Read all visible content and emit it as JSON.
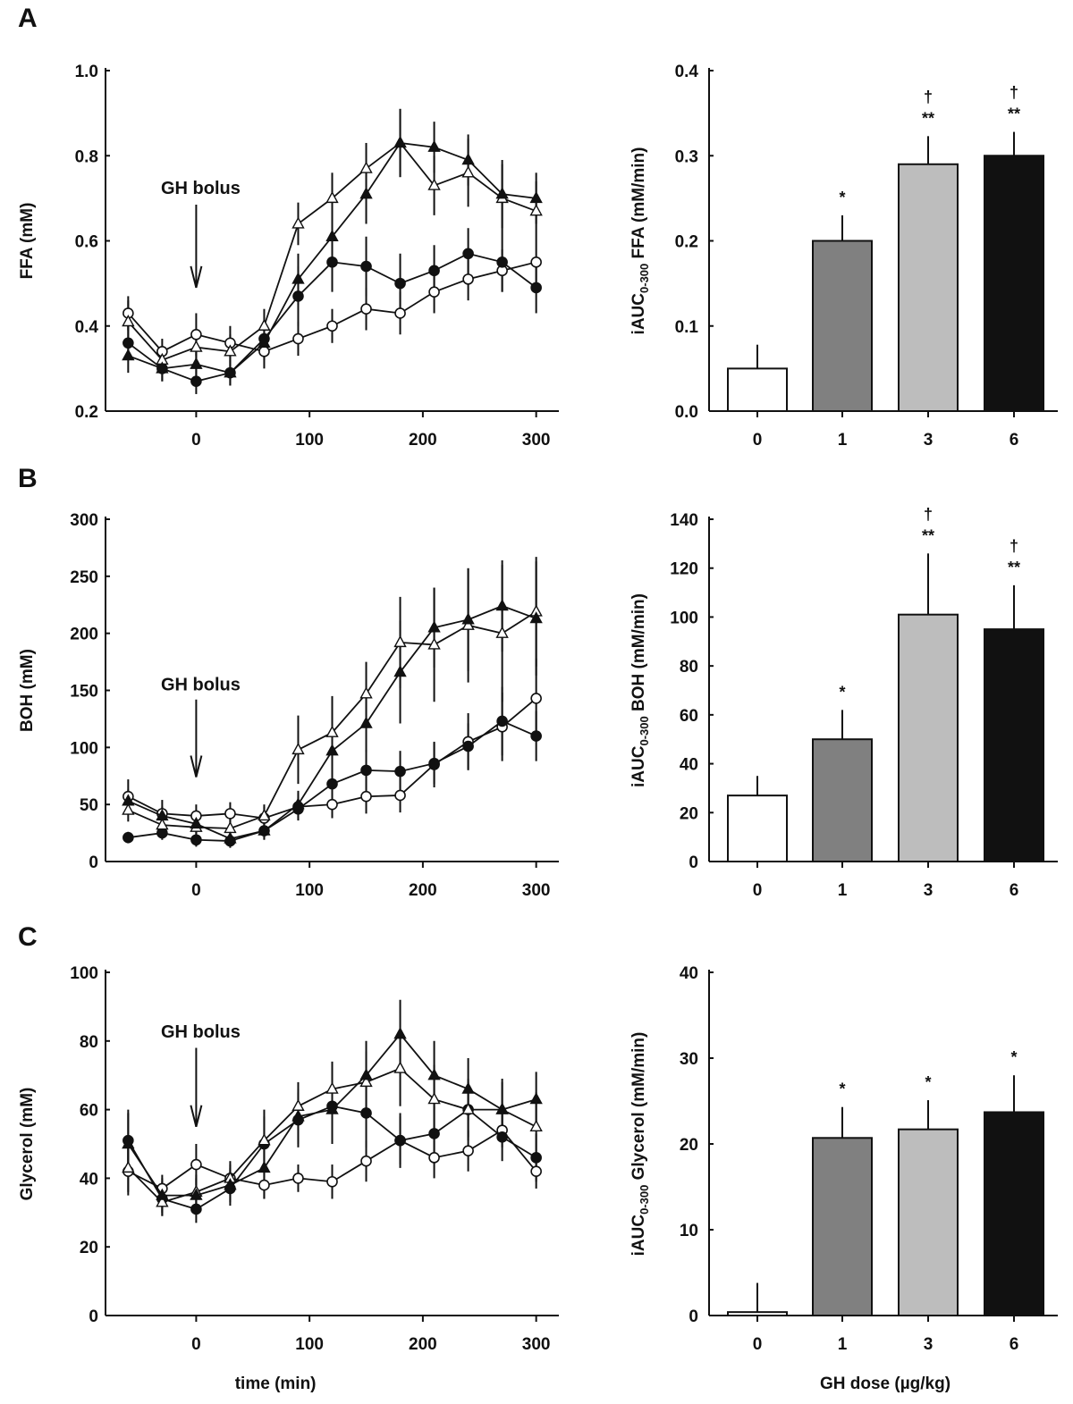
{
  "chart_data": [
    {
      "panel": "A",
      "type": "line",
      "ylabel": "FFA (mM)",
      "xlabel": "",
      "x": [
        -60,
        -30,
        0,
        30,
        60,
        90,
        120,
        150,
        180,
        210,
        240,
        270,
        300
      ],
      "xticks": [
        0,
        100,
        200,
        300
      ],
      "xlim": [
        -80,
        320
      ],
      "yticks": [
        "0.2",
        "0.4",
        "0.6",
        "0.8",
        "1.0"
      ],
      "ylim": [
        0.2,
        1.0
      ],
      "annotation": {
        "text": "GH bolus",
        "x": 0,
        "arrow_from": 0.685,
        "arrow_to": 0.49,
        "text_y": 0.71
      },
      "series": [
        {
          "marker": "open-circle",
          "values": [
            0.43,
            0.34,
            0.38,
            0.36,
            0.34,
            0.37,
            0.4,
            0.44,
            0.43,
            0.48,
            0.51,
            0.53,
            0.55
          ],
          "err": [
            0.04,
            0.03,
            0.05,
            0.04,
            0.04,
            0.04,
            0.04,
            0.05,
            0.05,
            0.05,
            0.05,
            0.05,
            0.05
          ]
        },
        {
          "marker": "filled-circle",
          "values": [
            0.36,
            0.3,
            0.27,
            0.29,
            0.37,
            0.47,
            0.55,
            0.54,
            0.5,
            0.53,
            0.57,
            0.55,
            0.49
          ],
          "err": [
            0.04,
            0.03,
            0.03,
            0.03,
            0.04,
            0.07,
            0.07,
            0.07,
            0.07,
            0.06,
            0.06,
            0.07,
            0.06
          ]
        },
        {
          "marker": "open-triangle",
          "values": [
            0.41,
            0.32,
            0.35,
            0.34,
            0.4,
            0.64,
            0.7,
            0.77,
            0.83,
            0.73,
            0.76,
            0.7,
            0.67
          ],
          "err": [
            0.05,
            0.03,
            0.04,
            0.04,
            0.04,
            0.05,
            0.06,
            0.06,
            0.08,
            0.07,
            0.08,
            0.08,
            0.07
          ]
        },
        {
          "marker": "filled-triangle",
          "values": [
            0.33,
            0.3,
            0.31,
            0.29,
            0.36,
            0.51,
            0.61,
            0.71,
            0.83,
            0.82,
            0.79,
            0.71,
            0.7
          ],
          "err": [
            0.04,
            0.03,
            0.03,
            0.03,
            0.04,
            0.06,
            0.08,
            0.07,
            0.08,
            0.06,
            0.06,
            0.08,
            0.06
          ]
        }
      ]
    },
    {
      "panel": "A",
      "type": "bar",
      "ylabel_main": "iAUC",
      "ylabel_sub": "0-300",
      "ylabel_rest": " FFA (mM/min)",
      "xlabel": "",
      "categories": [
        "0",
        "1",
        "3",
        "6"
      ],
      "values": [
        0.05,
        0.2,
        0.29,
        0.3
      ],
      "err": [
        0.028,
        0.03,
        0.033,
        0.028
      ],
      "sig": [
        "",
        "*",
        "**",
        "**"
      ],
      "dagger": [
        "",
        "",
        "†",
        "†"
      ],
      "colors": [
        "#ffffff",
        "#808080",
        "#bdbdbd",
        "#111111"
      ],
      "yticks": [
        "0.0",
        "0.1",
        "0.2",
        "0.3",
        "0.4"
      ],
      "ylim": [
        0,
        0.4
      ]
    },
    {
      "panel": "B",
      "type": "line",
      "ylabel": "BOH (mM)",
      "xlabel": "",
      "x": [
        -60,
        -30,
        0,
        30,
        60,
        90,
        120,
        150,
        180,
        210,
        240,
        270,
        300
      ],
      "xticks": [
        0,
        100,
        200,
        300
      ],
      "xlim": [
        -80,
        320
      ],
      "yticks": [
        "0",
        "50",
        "100",
        "150",
        "200",
        "250",
        "300"
      ],
      "ylim": [
        0,
        300
      ],
      "annotation": {
        "text": "GH bolus",
        "x": 0,
        "arrow_from": 142,
        "arrow_to": 74,
        "text_y": 150
      },
      "series": [
        {
          "marker": "open-circle",
          "values": [
            57,
            42,
            40,
            42,
            38,
            48,
            50,
            57,
            58,
            85,
            105,
            118,
            143
          ],
          "err": [
            15,
            12,
            10,
            10,
            10,
            12,
            12,
            15,
            15,
            20,
            25,
            30,
            35
          ]
        },
        {
          "marker": "filled-circle",
          "values": [
            21,
            25,
            19,
            18,
            27,
            46,
            68,
            80,
            79,
            86,
            101,
            123,
            110
          ],
          "err": [
            5,
            6,
            6,
            6,
            7,
            10,
            15,
            18,
            18,
            18,
            20,
            30,
            22
          ]
        },
        {
          "marker": "open-triangle",
          "values": [
            45,
            32,
            30,
            29,
            40,
            98,
            113,
            147,
            192,
            190,
            207,
            200,
            219
          ],
          "err": [
            10,
            8,
            8,
            8,
            10,
            30,
            32,
            28,
            40,
            50,
            50,
            60,
            48
          ]
        },
        {
          "marker": "filled-triangle",
          "values": [
            53,
            40,
            33,
            20,
            27,
            50,
            97,
            121,
            166,
            205,
            212,
            224,
            213
          ],
          "err": [
            10,
            8,
            8,
            6,
            8,
            12,
            20,
            25,
            45,
            35,
            45,
            40,
            50
          ]
        }
      ]
    },
    {
      "panel": "B",
      "type": "bar",
      "ylabel_main": "iAUC",
      "ylabel_sub": "0-300",
      "ylabel_rest": " BOH (mM/min)",
      "xlabel": "",
      "categories": [
        "0",
        "1",
        "3",
        "6"
      ],
      "values": [
        27,
        50,
        101,
        95
      ],
      "err": [
        8,
        12,
        25,
        18
      ],
      "sig": [
        "",
        "*",
        "**",
        "**"
      ],
      "dagger": [
        "",
        "",
        "†",
        "†"
      ],
      "colors": [
        "#ffffff",
        "#808080",
        "#bdbdbd",
        "#111111"
      ],
      "yticks": [
        "0",
        "20",
        "40",
        "60",
        "80",
        "100",
        "120",
        "140"
      ],
      "ylim": [
        0,
        140
      ]
    },
    {
      "panel": "C",
      "type": "line",
      "ylabel": "Glycerol (mM)",
      "xlabel": "time (min)",
      "x": [
        -60,
        -30,
        0,
        30,
        60,
        90,
        120,
        150,
        180,
        210,
        240,
        270,
        300
      ],
      "xticks": [
        0,
        100,
        200,
        300
      ],
      "xlim": [
        -80,
        320
      ],
      "yticks": [
        "0",
        "20",
        "40",
        "60",
        "80",
        "100"
      ],
      "ylim": [
        0,
        100
      ],
      "annotation": {
        "text": "GH bolus",
        "x": 0,
        "arrow_from": 78,
        "arrow_to": 55,
        "text_y": 81
      },
      "series": [
        {
          "marker": "open-circle",
          "values": [
            42,
            37,
            44,
            40,
            38,
            40,
            39,
            45,
            51,
            46,
            48,
            54,
            42
          ],
          "err": [
            7,
            4,
            6,
            4,
            4,
            4,
            5,
            6,
            7,
            6,
            6,
            5,
            5
          ]
        },
        {
          "marker": "filled-circle",
          "values": [
            51,
            34,
            31,
            37,
            50,
            57,
            61,
            59,
            51,
            53,
            60,
            52,
            46
          ],
          "err": [
            9,
            5,
            4,
            5,
            8,
            8,
            8,
            10,
            8,
            8,
            9,
            7,
            7
          ]
        },
        {
          "marker": "open-triangle",
          "values": [
            43,
            33,
            36,
            40,
            51,
            61,
            66,
            68,
            72,
            63,
            60,
            60,
            55
          ],
          "err": [
            7,
            4,
            5,
            5,
            9,
            7,
            8,
            9,
            11,
            10,
            8,
            8,
            10
          ]
        },
        {
          "marker": "filled-triangle",
          "values": [
            50,
            35,
            35,
            38,
            43,
            58,
            60,
            70,
            82,
            70,
            66,
            60,
            63
          ],
          "err": [
            9,
            5,
            5,
            5,
            9,
            8,
            10,
            10,
            10,
            10,
            9,
            9,
            8
          ]
        }
      ]
    },
    {
      "panel": "C",
      "type": "bar",
      "ylabel_main": "iAUC",
      "ylabel_sub": "0-300",
      "ylabel_rest": " Glycerol (mM/min)",
      "xlabel": "GH dose (µg/kg)",
      "categories": [
        "0",
        "1",
        "3",
        "6"
      ],
      "values": [
        0.4,
        20.7,
        21.7,
        23.7
      ],
      "err": [
        3.4,
        3.6,
        3.4,
        4.3
      ],
      "sig": [
        "",
        "*",
        "*",
        "*"
      ],
      "dagger": [
        "",
        "",
        "",
        ""
      ],
      "colors": [
        "#ffffff",
        "#808080",
        "#bdbdbd",
        "#111111"
      ],
      "yticks": [
        "0",
        "10",
        "20",
        "30",
        "40"
      ],
      "ylim": [
        0,
        40
      ]
    }
  ]
}
